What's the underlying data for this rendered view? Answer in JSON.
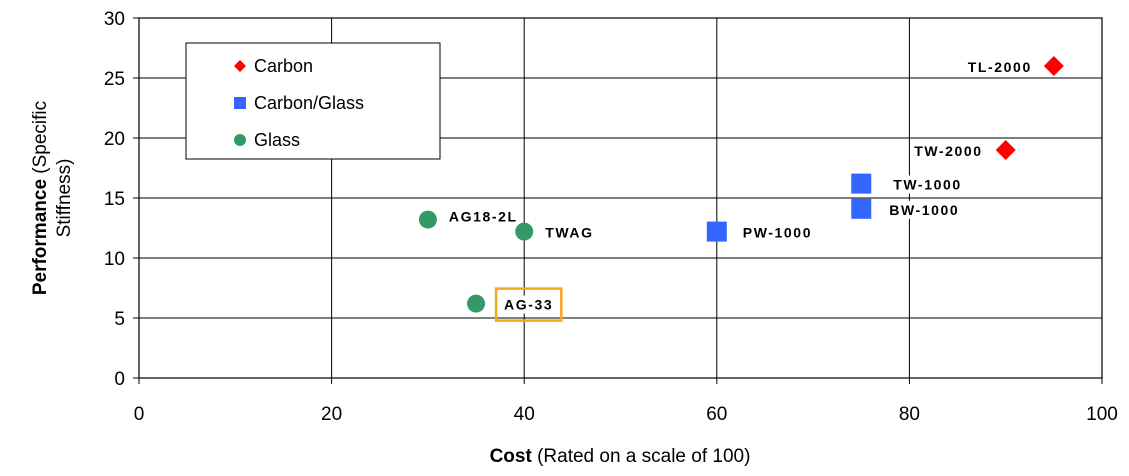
{
  "chart_data": {
    "type": "scatter",
    "xlabel_bold": "Cost",
    "xlabel_rest": " (Rated on a scale of 100)",
    "ylabel_line1_bold": "Performance",
    "ylabel_line1_rest": " (Specific",
    "ylabel_line2": "Stiffness)",
    "xlim": [
      0,
      100
    ],
    "ylim": [
      0,
      30
    ],
    "xticks": [
      0,
      20,
      40,
      60,
      80,
      100
    ],
    "yticks": [
      0,
      5,
      10,
      15,
      20,
      25,
      30
    ],
    "grid": true,
    "legend_position": "top-left",
    "series": [
      {
        "name": "Carbon",
        "marker": "diamond",
        "color": "#ff0000",
        "points": [
          {
            "x": 95,
            "y": 26,
            "label": "TL-2000"
          },
          {
            "x": 90,
            "y": 19,
            "label": "TW-2000"
          }
        ]
      },
      {
        "name": "Carbon/Glass",
        "marker": "square",
        "color": "#3366ff",
        "points": [
          {
            "x": 75,
            "y": 16.2,
            "label": "TW-1000"
          },
          {
            "x": 75,
            "y": 14.1,
            "label": "BW-1000"
          },
          {
            "x": 60,
            "y": 12.2,
            "label": "PW-1000"
          }
        ]
      },
      {
        "name": "Glass",
        "marker": "circle",
        "color": "#339966",
        "points": [
          {
            "x": 30,
            "y": 13.2,
            "label": "AG18-2L"
          },
          {
            "x": 40,
            "y": 12.2,
            "label": "TWAG"
          },
          {
            "x": 35,
            "y": 6.2,
            "label": "AG-33",
            "highlight": true
          }
        ]
      }
    ],
    "highlight_color": "#f5a623"
  }
}
